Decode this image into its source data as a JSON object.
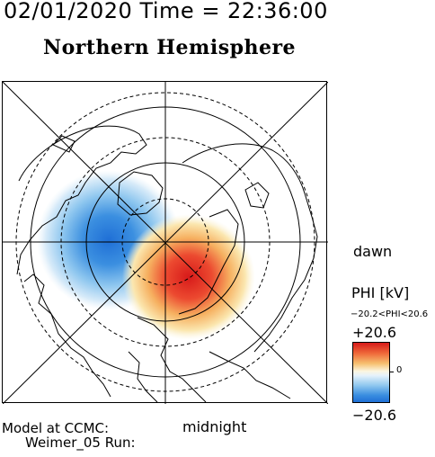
{
  "header": {
    "timestamp": "02/01/2020 Time = 22:36:00",
    "hemisphere": "Northern Hemisphere"
  },
  "map": {
    "dawn_label": "dawn",
    "midnight_label": "midnight"
  },
  "legend": {
    "quantity": "PHI [kV]",
    "range": "−20.2<PHI<20.6",
    "max": "+20.6",
    "zero": "0",
    "min": "−20.6",
    "colors": {
      "positive": "#d71a1a",
      "neutral": "#fbf6e0",
      "negative": "#1f6fd6"
    }
  },
  "footer": {
    "model": "Model at CCMC:",
    "run": "Weimer_05 Run:"
  }
}
